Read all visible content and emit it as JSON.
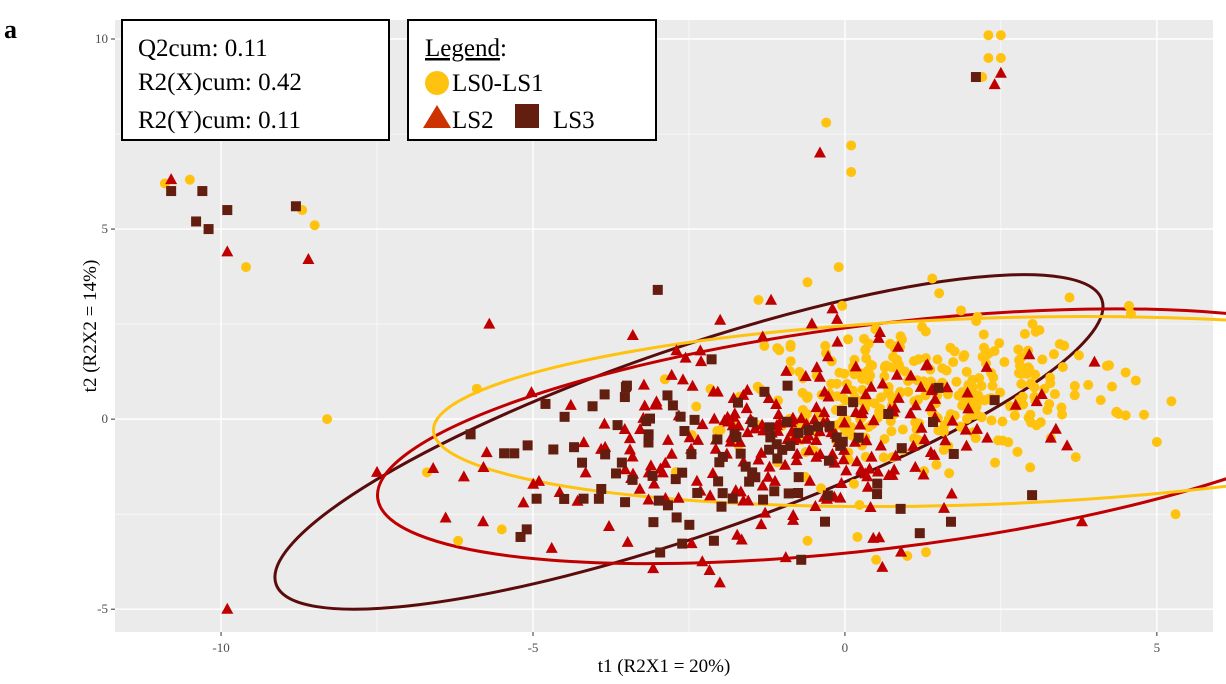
{
  "panel_label": "a",
  "stats": {
    "q2cum": "Q2cum: 0.11",
    "r2x": "R2(X)cum: 0.42",
    "r2y": "R2(Y)cum: 0.11"
  },
  "legend": {
    "title": "Legend",
    "colon": ":",
    "lbl_ls01": "LS0-LS1",
    "lbl_ls2": "LS2",
    "lbl_ls3": "LS3"
  },
  "colors": {
    "ls01": "#FFC20E",
    "ls2": "#C00000",
    "ls2_legend": "#CC3300",
    "ls3": "#641E10",
    "ell_ls3": "#5A0C0C",
    "ell_ls2": "#C00000",
    "ell_ls01": "#FFC20E",
    "panel": "#EBEBEB",
    "grid": "#FFFFFF"
  },
  "chart_data": {
    "type": "scatter",
    "xlabel": "t1 (R2X1 = 20%)",
    "ylabel": "t2 (R2X2 = 14%)",
    "xlim": [
      -11.7,
      5.9
    ],
    "ylim": [
      -5.6,
      10.5
    ],
    "xticks": [
      -10,
      -5,
      0,
      5
    ],
    "yticks": [
      -5,
      0,
      5,
      10
    ],
    "xtick_labels": [
      "-10",
      "-5",
      "0",
      "5"
    ],
    "ytick_labels": [
      "-5",
      "0",
      "5",
      "10"
    ],
    "grid": true,
    "legend_position": "top-left",
    "series": [
      {
        "key": "ls01",
        "marker": "circle",
        "points": [
          [
            2.3,
            10.1
          ],
          [
            2.5,
            10.1
          ],
          [
            2.3,
            9.5
          ],
          [
            2.5,
            9.5
          ],
          [
            2.2,
            9.0
          ],
          [
            -0.3,
            7.8
          ],
          [
            0.1,
            6.5
          ],
          [
            0.1,
            7.2
          ],
          [
            -10.9,
            6.2
          ],
          [
            -10.5,
            6.3
          ],
          [
            -8.7,
            5.5
          ],
          [
            -8.5,
            5.1
          ],
          [
            -9.6,
            4.0
          ],
          [
            -8.3,
            0.0
          ],
          [
            -5.9,
            0.8
          ],
          [
            -6.7,
            -1.4
          ],
          [
            -6.2,
            -3.2
          ],
          [
            -5.5,
            -2.9
          ],
          [
            5.0,
            -0.6
          ],
          [
            5.3,
            -2.5
          ],
          [
            -0.1,
            4.0
          ],
          [
            -0.6,
            3.6
          ],
          [
            1.4,
            3.7
          ],
          [
            3.6,
            3.2
          ],
          [
            4.5,
            0.1
          ],
          [
            4.2,
            1.4
          ],
          [
            4.1,
            0.5
          ],
          [
            3.7,
            -1.0
          ],
          [
            3.3,
            -0.5
          ],
          [
            3.9,
            0.9
          ],
          [
            0.2,
            -3.1
          ],
          [
            0.5,
            -3.7
          ],
          [
            1.0,
            -3.6
          ],
          [
            -0.6,
            -3.2
          ],
          [
            1.3,
            -3.5
          ]
        ],
        "cluster": {
          "cx": 1.2,
          "cy": 0.7,
          "sx": 1.45,
          "sy": 1.05,
          "n": 330,
          "seed": 11
        }
      },
      {
        "key": "ls2",
        "marker": "triangle",
        "points": [
          [
            2.5,
            9.1
          ],
          [
            2.4,
            8.8
          ],
          [
            -0.4,
            7.0
          ],
          [
            -10.8,
            6.3
          ],
          [
            -9.9,
            4.4
          ],
          [
            -8.6,
            4.2
          ],
          [
            -5.7,
            2.5
          ],
          [
            -7.5,
            -1.4
          ],
          [
            -6.6,
            -1.3
          ],
          [
            -6.4,
            -2.6
          ],
          [
            -5.8,
            -2.7
          ],
          [
            -4.7,
            -3.4
          ],
          [
            -9.9,
            -5.0
          ],
          [
            -2.0,
            2.6
          ],
          [
            -3.4,
            2.2
          ],
          [
            -2.7,
            1.8
          ],
          [
            3.8,
            -2.7
          ],
          [
            4.0,
            1.5
          ],
          [
            3.3,
            -0.5
          ],
          [
            1.3,
            1.4
          ],
          [
            -0.2,
            2.9
          ],
          [
            0.6,
            -3.9
          ],
          [
            0.9,
            -3.5
          ]
        ],
        "cluster": {
          "cx": -1.1,
          "cy": -0.6,
          "sx": 1.85,
          "sy": 1.35,
          "n": 240,
          "seed": 23
        }
      },
      {
        "key": "ls3",
        "marker": "square",
        "points": [
          [
            2.1,
            9.0
          ],
          [
            -10.8,
            6.0
          ],
          [
            -10.3,
            6.0
          ],
          [
            -9.9,
            5.5
          ],
          [
            -10.4,
            5.2
          ],
          [
            -10.2,
            5.0
          ],
          [
            -8.8,
            5.6
          ],
          [
            -3.0,
            3.4
          ],
          [
            -6.0,
            -0.4
          ],
          [
            -5.3,
            -0.9
          ],
          [
            -5.1,
            -2.9
          ],
          [
            -5.2,
            -3.1
          ],
          [
            -4.5,
            -2.1
          ],
          [
            -2.1,
            -3.2
          ],
          [
            -0.7,
            -3.7
          ],
          [
            -4.8,
            0.4
          ],
          [
            2.4,
            0.5
          ],
          [
            3.0,
            -2.0
          ],
          [
            1.2,
            -3.0
          ],
          [
            1.7,
            -2.7
          ]
        ],
        "cluster": {
          "cx": -1.8,
          "cy": -0.9,
          "sx": 1.55,
          "sy": 1.15,
          "n": 95,
          "seed": 37
        }
      }
    ],
    "ellipses": [
      {
        "key": "ell_ls3",
        "cx": -2.5,
        "cy": -0.6,
        "rx": 7.0,
        "ry": 2.45,
        "angle_deg": 19
      },
      {
        "key": "ell_ls2",
        "cx": 0.6,
        "cy": -0.45,
        "rx": 8.15,
        "ry": 2.95,
        "angle_deg": 7
      },
      {
        "key": "ell_ls01",
        "cx": 2.15,
        "cy": 0.2,
        "rx": 8.75,
        "ry": 2.45,
        "angle_deg": 2
      }
    ]
  }
}
